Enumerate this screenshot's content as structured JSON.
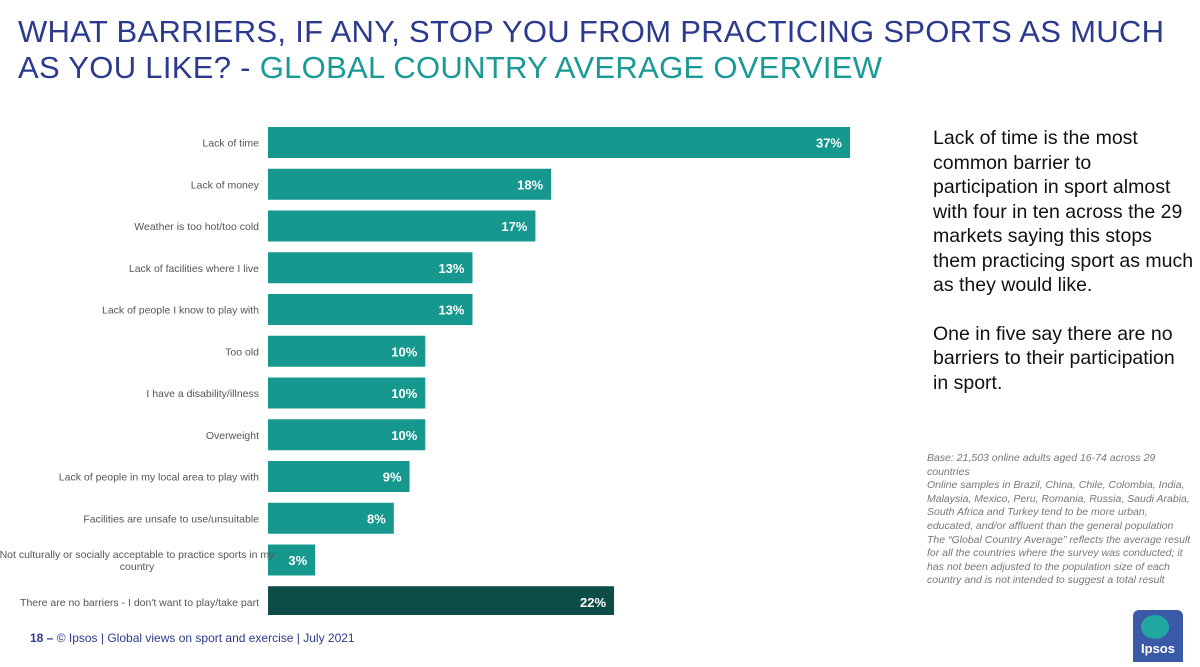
{
  "title": {
    "main": "WHAT BARRIERS, IF ANY, STOP YOU FROM PRACTICING SPORTS AS MUCH AS YOU LIKE? -",
    "accent": "GLOBAL COUNTRY AVERAGE OVERVIEW"
  },
  "colors": {
    "title": "#2b3a8c",
    "accent": "#1a9a94",
    "bar": "#17988f",
    "bar_highlight": "#0d4d48"
  },
  "chart_data": {
    "type": "bar",
    "orientation": "horizontal",
    "categories": [
      "Lack of time",
      "Lack of money",
      "Weather is too hot/too cold",
      "Lack of facilities where I live",
      "Lack of people I know to play with",
      "Too old",
      "I have a disability/illness",
      "Overweight",
      "Lack of people in my local area to play with",
      "Facilities are unsafe to use/unsuitable",
      "Not culturally or socially acceptable to practice sports in my country",
      "There are no barriers - I don't want to play/take part"
    ],
    "values": [
      37,
      18,
      17,
      13,
      13,
      10,
      10,
      10,
      9,
      8,
      3,
      22
    ],
    "value_labels": [
      "37%",
      "18%",
      "17%",
      "13%",
      "13%",
      "10%",
      "10%",
      "10%",
      "9%",
      "8%",
      "3%",
      "22%"
    ],
    "unit": "%",
    "highlight_index": 11,
    "xlim": [
      0,
      37
    ],
    "grid": false,
    "legend": "none"
  },
  "commentary": {
    "p1": "Lack of time is the most common barrier to participation in sport almost with four in ten across the 29 markets saying this stops them practicing sport as much as they would like.",
    "p2": "One in five say there are no barriers to their participation in sport."
  },
  "base_note": {
    "line1": "Base: 21,503 online adults aged 16-74 across 29 countries",
    "line2": "Online samples in Brazil, China, Chile, Colombia, India, Malaysia, Mexico, Peru, Romania, Russia, Saudi Arabia, South Africa and Turkey tend to be more urban, educated, and/or affluent than the general population",
    "line3": "The “Global Country Average” reflects the average result for all the countries where the survey was conducted; it has not been adjusted to the population size of each country and is not intended to suggest a total result"
  },
  "footer": {
    "page_number": "18 –",
    "text": "© Ipsos | Global views on sport and exercise | July 2021"
  },
  "logo": {
    "text": "Ipsos",
    "icon": "ipsos-logo-icon"
  }
}
